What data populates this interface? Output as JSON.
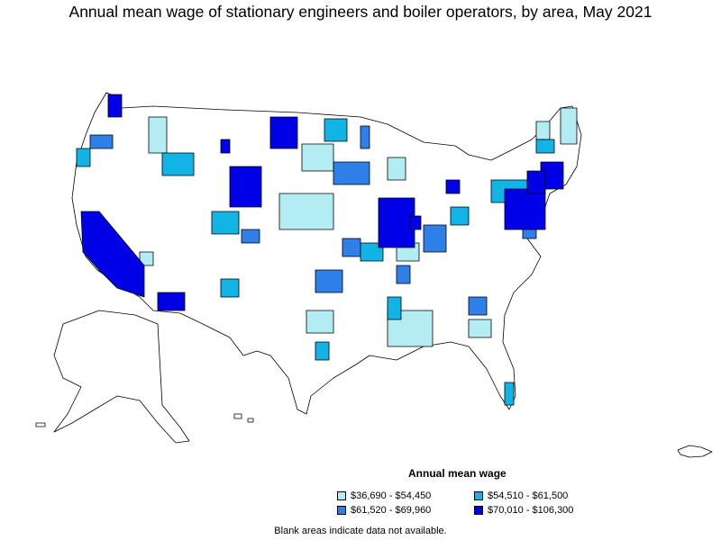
{
  "title": "Annual mean wage of stationary engineers and boiler operators, by area, May 2021",
  "legend": {
    "title": "Annual mean wage",
    "items": [
      {
        "label": "$36,690 - $54,450",
        "color": "#b3ecf2"
      },
      {
        "label": "$54,510 - $61,500",
        "color": "#12b4e6"
      },
      {
        "label": "$61,520 - $69,960",
        "color": "#2e7fe8"
      },
      {
        "label": "$70,010 - $106,300",
        "color": "#0000e6"
      }
    ]
  },
  "footnote": "Blank areas indicate data not available.",
  "colors": {
    "no_data": "#ffffff",
    "border": "#000000"
  }
}
